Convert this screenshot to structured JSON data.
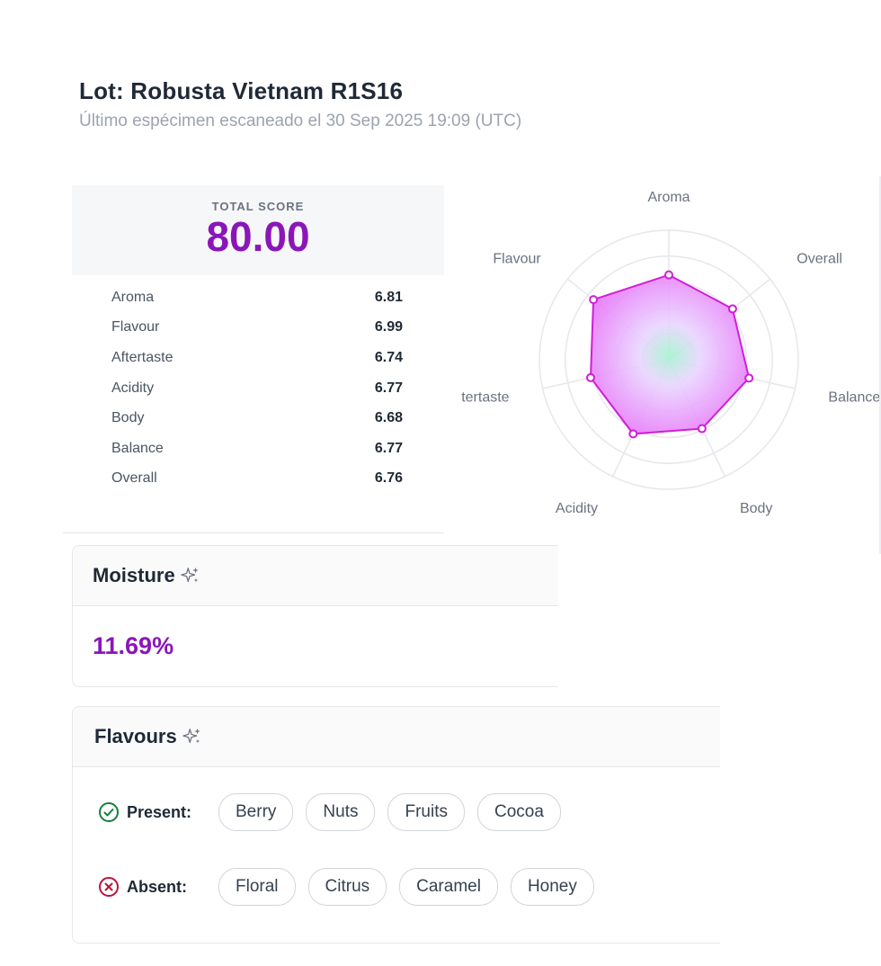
{
  "header": {
    "title": "Lot: Robusta Vietnam R1S16",
    "subtitle": "Último espécimen escaneado el 30 Sep 2025 19:09 (UTC)"
  },
  "score": {
    "label": "TOTAL SCORE",
    "value": "80.00",
    "rows": [
      {
        "attribute": "Aroma",
        "value": "6.81"
      },
      {
        "attribute": "Flavour",
        "value": "6.99"
      },
      {
        "attribute": "Aftertaste",
        "value": "6.74"
      },
      {
        "attribute": "Acidity",
        "value": "6.77"
      },
      {
        "attribute": "Body",
        "value": "6.68"
      },
      {
        "attribute": "Balance",
        "value": "6.77"
      },
      {
        "attribute": "Overall",
        "value": "6.76"
      }
    ]
  },
  "chart_data": {
    "type": "radar",
    "categories": [
      "Aroma",
      "Overall",
      "Balance",
      "Body",
      "Acidity",
      "tertaste",
      "Flavour"
    ],
    "values": [
      6.81,
      6.76,
      6.77,
      6.68,
      6.77,
      6.74,
      6.99
    ],
    "range": [
      5.5,
      7.5
    ],
    "grid": true,
    "colors": {
      "fill": "#e879f9",
      "stroke": "#d01fd6",
      "center": "#86efcf"
    }
  },
  "moisture": {
    "title": "Moisture",
    "value": "11.69%",
    "icon": "sparkle-icon"
  },
  "flavours": {
    "title": "Flavours",
    "icon": "sparkle-icon",
    "present_label": "Present:",
    "absent_label": "Absent:",
    "present": [
      "Berry",
      "Nuts",
      "Fruits",
      "Cocoa"
    ],
    "absent": [
      "Floral",
      "Citrus",
      "Caramel",
      "Honey"
    ]
  },
  "colors": {
    "accent": "#8b16b8",
    "present_icon": "#15803d",
    "absent_icon": "#be123c"
  }
}
